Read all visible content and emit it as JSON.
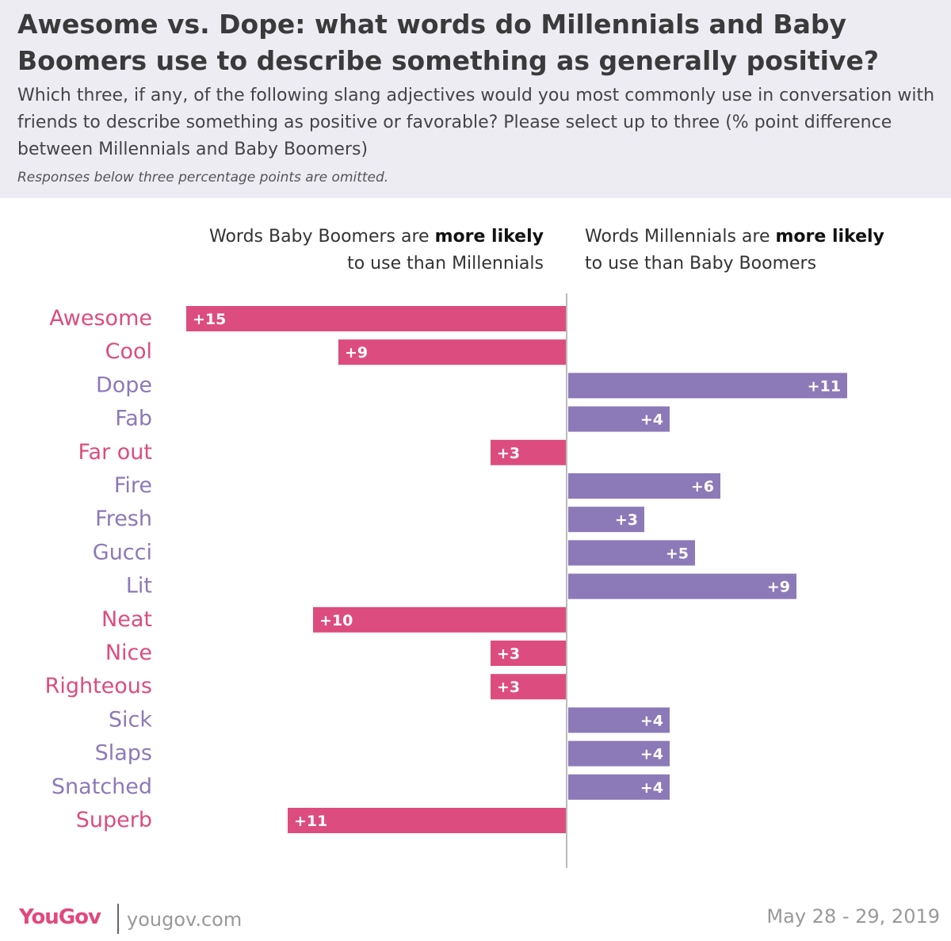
{
  "title": "Awesome vs. Dope: what words do Millennials and Baby Boomers use to describe something as generally positive?",
  "subtitle": "Which three, if any, of the following slang adjectives would you most commonly use in conversation with friends to describe something as positive or favorable? Please select up to three (% point difference between Millennials and Baby Boomers)",
  "note": "Responses below three percentage points are omitted.",
  "left_header": {
    "prefix": "Words Baby Boomers are ",
    "bold": "more likely",
    "suffix": "to use than Millennials"
  },
  "right_header": {
    "prefix": "Words Millennials are ",
    "bold": "more likely",
    "suffix": "to use than Baby Boomers"
  },
  "colors": {
    "boomers": "#dd4c7e",
    "millennials": "#8c79b8"
  },
  "footer": {
    "brand": "YouGov",
    "url": "yougov.com",
    "date": "May 28 - 29, 2019"
  },
  "chart_data": {
    "type": "bar",
    "orientation": "horizontal-diverging",
    "categories": [
      "Awesome",
      "Cool",
      "Dope",
      "Fab",
      "Far out",
      "Fire",
      "Fresh",
      "Gucci",
      "Lit",
      "Neat",
      "Nice",
      "Righteous",
      "Sick",
      "Slaps",
      "Snatched",
      "Superb"
    ],
    "series": [
      {
        "name": "Words Baby Boomers are more likely to use than Millennials",
        "values": [
          15,
          9,
          null,
          null,
          3,
          null,
          null,
          null,
          null,
          10,
          3,
          3,
          null,
          null,
          null,
          11
        ]
      },
      {
        "name": "Words Millennials are more likely to use than Baby Boomers",
        "values": [
          null,
          null,
          11,
          4,
          null,
          6,
          3,
          5,
          9,
          null,
          null,
          null,
          4,
          4,
          4,
          null
        ]
      }
    ],
    "data_labels": [
      "+15",
      "+9",
      "+11",
      "+4",
      "+3",
      "+6",
      "+3",
      "+5",
      "+9",
      "+10",
      "+3",
      "+3",
      "+4",
      "+4",
      "+4",
      "+11"
    ]
  }
}
